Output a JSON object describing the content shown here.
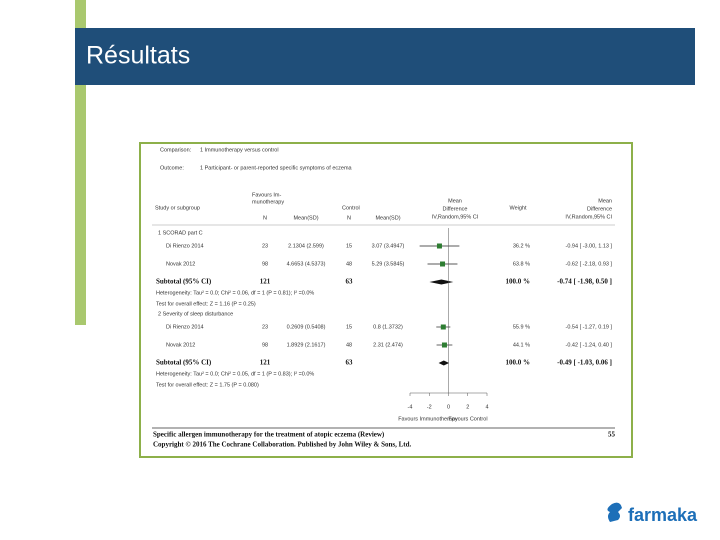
{
  "slide": {
    "title": "Résultats",
    "logo": "farmaka"
  },
  "figure": {
    "comparison_label": "Comparison:",
    "comparison": "1 Immunotherapy versus control",
    "outcome_label": "Outcome:",
    "outcome": "1 Participant- or parent-reported specific symptoms of eczema",
    "headers": {
      "study": "Study or subgroup",
      "group1": [
        "Favours Im-",
        "munotherapy"
      ],
      "group2": "Control",
      "n1": "N",
      "mean1": "Mean(SD)",
      "n2": "N",
      "mean2": "Mean(SD)",
      "md_plot": [
        "Mean",
        "Difference",
        "IV,Random,95% CI"
      ],
      "weight": "Weight",
      "md_text": [
        "Mean",
        "Difference",
        "IV,Random,95% CI"
      ]
    },
    "subgroups": [
      {
        "name": "1 SCORAD part C",
        "studies": [
          {
            "study": "Di Rienzo 2014",
            "n1": 23,
            "mean1": "2.1304 (2.599)",
            "n2": 15,
            "mean2": "3.07 (3.4947)",
            "weight": "36.2 %",
            "md": {
              "value": -0.94,
              "low": -3.0,
              "high": 1.13,
              "label": "-0.94 [ -3.00, 1.13 ]"
            }
          },
          {
            "study": "Novak 2012",
            "n1": 98,
            "mean1": "4.6653 (4.5373)",
            "n2": 48,
            "mean2": "5.29 (3.5845)",
            "weight": "63.8 %",
            "md": {
              "value": -0.62,
              "low": -2.18,
              "high": 0.93,
              "label": "-0.62 [ -2.18, 0.93 ]"
            }
          }
        ],
        "subtotal": {
          "label": "Subtotal (95% CI)",
          "n1": 121,
          "n2": 63,
          "weight": "100.0 %",
          "md": {
            "value": -0.74,
            "low": -1.98,
            "high": 0.5,
            "label": "-0.74 [ -1.98, 0.50 ]"
          }
        },
        "heterogeneity": "Heterogeneity: Tau² = 0.0; Chi² = 0.06, df = 1 (P = 0.81); I² =0.0%",
        "overall_effect": "Test for overall effect: Z = 1.16 (P = 0.25)"
      },
      {
        "name": "2 Severity of sleep disturbance",
        "studies": [
          {
            "study": "Di Rienzo 2014",
            "n1": 23,
            "mean1": "0.2609 (0.5408)",
            "n2": 15,
            "mean2": "0.8 (1.3732)",
            "weight": "55.9 %",
            "md": {
              "value": -0.54,
              "low": -1.27,
              "high": 0.19,
              "label": "-0.54 [ -1.27, 0.19 ]"
            }
          },
          {
            "study": "Novak 2012",
            "n1": 98,
            "mean1": "1.8929 (2.1617)",
            "n2": 48,
            "mean2": "2.31 (2.474)",
            "weight": "44.1 %",
            "md": {
              "value": -0.42,
              "low": -1.24,
              "high": 0.4,
              "label": "-0.42 [ -1.24, 0.40 ]"
            }
          }
        ],
        "subtotal": {
          "label": "Subtotal (95% CI)",
          "n1": 121,
          "n2": 63,
          "weight": "100.0 %",
          "md": {
            "value": -0.49,
            "low": -1.03,
            "high": 0.06,
            "label": "-0.49 [ -1.03, 0.06 ]"
          }
        },
        "heterogeneity": "Heterogeneity: Tau² = 0.0; Chi² = 0.05, df = 1 (P = 0.83); I² =0.0%",
        "overall_effect": "Test for overall effect: Z = 1.75 (P = 0.080)"
      }
    ],
    "axis": {
      "xlim": [
        -4,
        4
      ],
      "xticks": [
        -4,
        -2,
        0,
        2,
        4
      ],
      "left_label": "Favours Immunotherapy",
      "right_label": "Favours Control"
    },
    "footer": {
      "citation": "Specific allergen immunotherapy for the treatment of atopic eczema (Review)",
      "page": "55",
      "copyright": "Copyright © 2016 The Cochrane Collaboration. Published by John Wiley & Sons, Ltd."
    }
  }
}
